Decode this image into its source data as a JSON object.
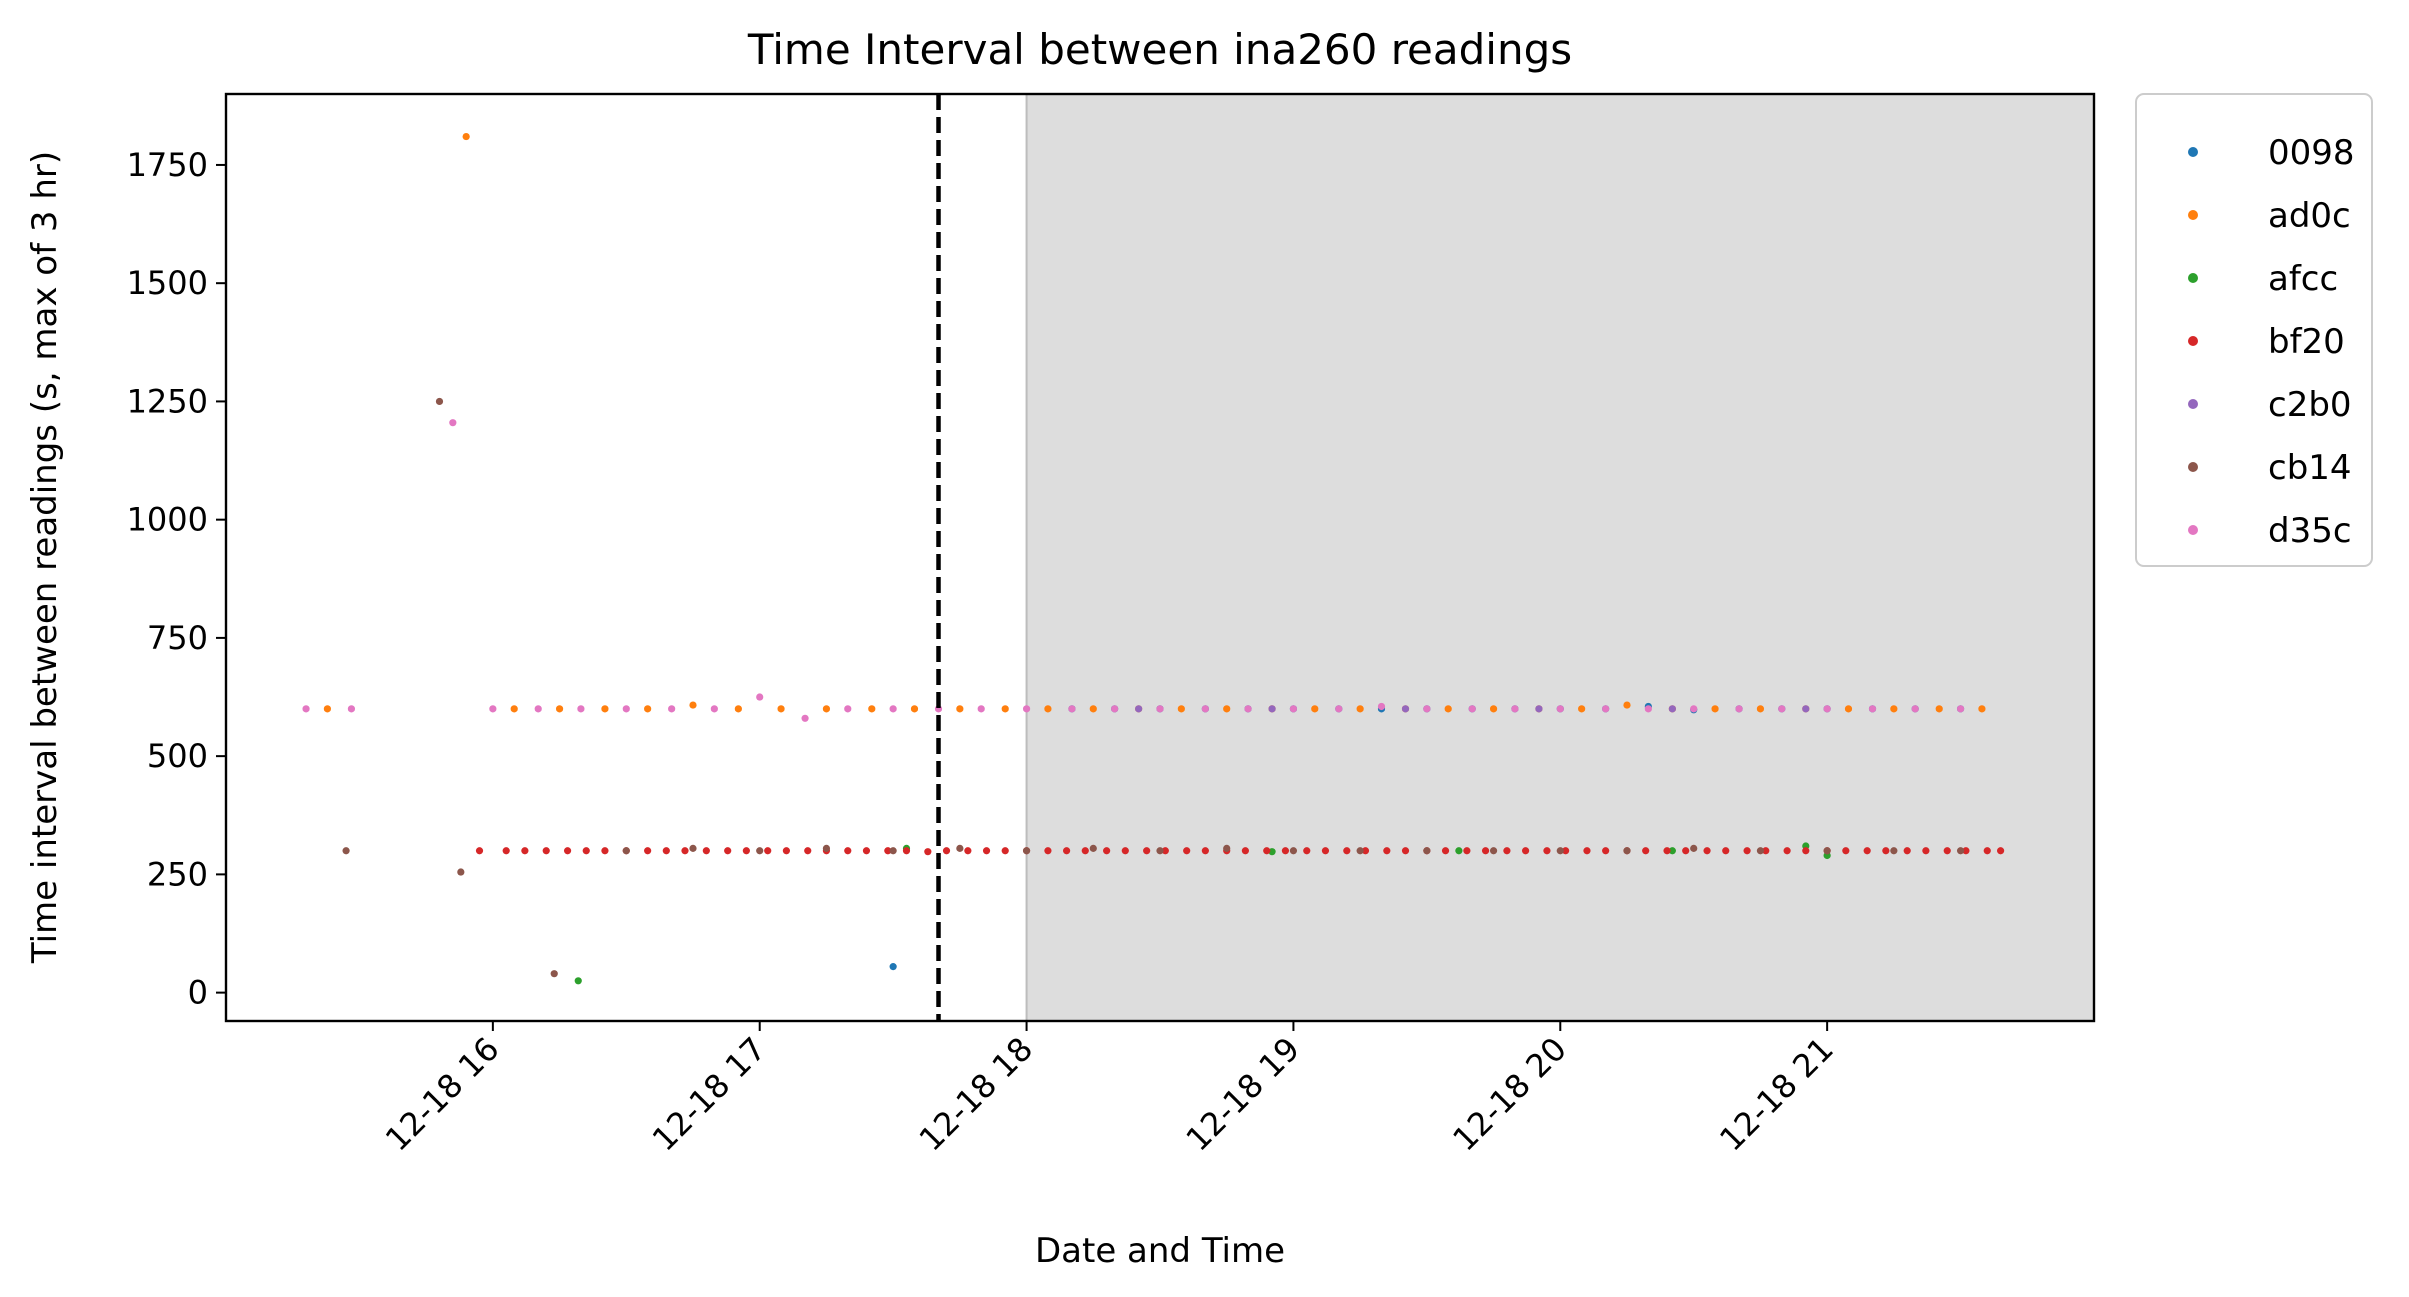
{
  "chart_data": {
    "type": "scatter",
    "title": "Time Interval between ina260 readings",
    "xlabel": "Date and Time",
    "ylabel": "Time interval between readings (s, max of 3 hr)",
    "x_unit": "hour of 12-18",
    "xlim": [
      15.0,
      22.0
    ],
    "ylim": [
      -60,
      1900
    ],
    "yticks": [
      0,
      250,
      500,
      750,
      1000,
      1250,
      1500,
      1750
    ],
    "xticks": [
      16,
      17,
      18,
      19,
      20,
      21
    ],
    "xtick_labels": [
      "12-18 16",
      "12-18 17",
      "12-18 18",
      "12-18 19",
      "12-18 20",
      "12-18 21"
    ],
    "shaded_region": {
      "x_start": 18.0,
      "x_end": 22.0,
      "color": "#dddddd"
    },
    "vline": {
      "x": 17.67,
      "style": "dashed",
      "color": "#000000"
    },
    "legend": {
      "placement": "outside-top-right"
    },
    "grid": false,
    "series": [
      {
        "name": "0098",
        "color": "#1f77b4",
        "points": [
          [
            17.5,
            55
          ],
          [
            18.17,
            600
          ],
          [
            18.33,
            600
          ],
          [
            18.5,
            600
          ],
          [
            18.67,
            600
          ],
          [
            18.83,
            600
          ],
          [
            19.0,
            600
          ],
          [
            19.17,
            600
          ],
          [
            19.33,
            600
          ],
          [
            19.5,
            600
          ],
          [
            19.67,
            600
          ],
          [
            19.83,
            600
          ],
          [
            20.0,
            600
          ],
          [
            20.17,
            600
          ],
          [
            20.33,
            605
          ],
          [
            20.5,
            598
          ],
          [
            20.67,
            600
          ],
          [
            20.83,
            600
          ],
          [
            21.0,
            600
          ],
          [
            21.17,
            600
          ],
          [
            21.33,
            600
          ],
          [
            21.5,
            600
          ]
        ]
      },
      {
        "name": "ad0c",
        "color": "#ff7f0e",
        "points": [
          [
            15.38,
            600
          ],
          [
            15.9,
            1810
          ],
          [
            16.08,
            600
          ],
          [
            16.25,
            600
          ],
          [
            16.42,
            600
          ],
          [
            16.58,
            600
          ],
          [
            16.75,
            608
          ],
          [
            16.92,
            600
          ],
          [
            17.08,
            600
          ],
          [
            17.25,
            600
          ],
          [
            17.42,
            600
          ],
          [
            17.58,
            600
          ],
          [
            17.75,
            600
          ],
          [
            17.92,
            600
          ],
          [
            18.08,
            600
          ],
          [
            18.25,
            600
          ],
          [
            18.42,
            600
          ],
          [
            18.58,
            600
          ],
          [
            18.75,
            600
          ],
          [
            18.92,
            600
          ],
          [
            19.08,
            600
          ],
          [
            19.25,
            600
          ],
          [
            19.42,
            600
          ],
          [
            19.58,
            600
          ],
          [
            19.75,
            600
          ],
          [
            19.92,
            600
          ],
          [
            20.08,
            600
          ],
          [
            20.25,
            608
          ],
          [
            20.42,
            600
          ],
          [
            20.58,
            600
          ],
          [
            20.75,
            600
          ],
          [
            20.92,
            600
          ],
          [
            21.08,
            600
          ],
          [
            21.25,
            600
          ],
          [
            21.42,
            600
          ],
          [
            21.58,
            600
          ]
        ]
      },
      {
        "name": "afcc",
        "color": "#2ca02c",
        "points": [
          [
            16.32,
            25
          ],
          [
            17.55,
            305
          ],
          [
            18.92,
            298
          ],
          [
            19.62,
            300
          ],
          [
            20.42,
            300
          ],
          [
            20.92,
            310
          ],
          [
            21.0,
            290
          ]
        ]
      },
      {
        "name": "bf20",
        "color": "#d62728",
        "points": [
          [
            15.95,
            300
          ],
          [
            16.05,
            300
          ],
          [
            16.12,
            300
          ],
          [
            16.2,
            300
          ],
          [
            16.28,
            300
          ],
          [
            16.35,
            300
          ],
          [
            16.42,
            300
          ],
          [
            16.5,
            300
          ],
          [
            16.58,
            300
          ],
          [
            16.65,
            300
          ],
          [
            16.72,
            300
          ],
          [
            16.8,
            300
          ],
          [
            16.88,
            300
          ],
          [
            16.95,
            300
          ],
          [
            17.03,
            300
          ],
          [
            17.1,
            300
          ],
          [
            17.18,
            300
          ],
          [
            17.25,
            300
          ],
          [
            17.33,
            300
          ],
          [
            17.4,
            300
          ],
          [
            17.48,
            300
          ],
          [
            17.55,
            300
          ],
          [
            17.63,
            298
          ],
          [
            17.7,
            300
          ],
          [
            17.78,
            300
          ],
          [
            17.85,
            300
          ],
          [
            17.92,
            300
          ],
          [
            18.0,
            300
          ],
          [
            18.08,
            300
          ],
          [
            18.15,
            300
          ],
          [
            18.22,
            300
          ],
          [
            18.3,
            300
          ],
          [
            18.37,
            300
          ],
          [
            18.45,
            300
          ],
          [
            18.52,
            300
          ],
          [
            18.6,
            300
          ],
          [
            18.67,
            300
          ],
          [
            18.75,
            300
          ],
          [
            18.82,
            300
          ],
          [
            18.9,
            300
          ],
          [
            18.97,
            300
          ],
          [
            19.05,
            300
          ],
          [
            19.12,
            300
          ],
          [
            19.2,
            300
          ],
          [
            19.27,
            300
          ],
          [
            19.35,
            300
          ],
          [
            19.42,
            300
          ],
          [
            19.5,
            300
          ],
          [
            19.57,
            300
          ],
          [
            19.65,
            300
          ],
          [
            19.72,
            300
          ],
          [
            19.8,
            300
          ],
          [
            19.87,
            300
          ],
          [
            19.95,
            300
          ],
          [
            20.02,
            300
          ],
          [
            20.1,
            300
          ],
          [
            20.17,
            300
          ],
          [
            20.25,
            300
          ],
          [
            20.32,
            300
          ],
          [
            20.4,
            300
          ],
          [
            20.47,
            300
          ],
          [
            20.55,
            300
          ],
          [
            20.62,
            300
          ],
          [
            20.7,
            300
          ],
          [
            20.77,
            300
          ],
          [
            20.85,
            300
          ],
          [
            20.92,
            300
          ],
          [
            21.0,
            300
          ],
          [
            21.07,
            300
          ],
          [
            21.15,
            300
          ],
          [
            21.22,
            300
          ],
          [
            21.3,
            300
          ],
          [
            21.37,
            300
          ],
          [
            21.45,
            300
          ],
          [
            21.52,
            300
          ],
          [
            21.6,
            300
          ],
          [
            21.65,
            300
          ]
        ]
      },
      {
        "name": "c2b0",
        "color": "#9467bd",
        "points": [
          [
            18.42,
            600
          ],
          [
            18.92,
            600
          ],
          [
            19.42,
            600
          ],
          [
            19.92,
            600
          ],
          [
            20.42,
            600
          ],
          [
            20.92,
            600
          ]
        ]
      },
      {
        "name": "cb14",
        "color": "#8c564b",
        "points": [
          [
            15.45,
            300
          ],
          [
            15.8,
            1250
          ],
          [
            15.88,
            255
          ],
          [
            16.23,
            40
          ],
          [
            16.5,
            300
          ],
          [
            16.75,
            305
          ],
          [
            17.0,
            300
          ],
          [
            17.25,
            305
          ],
          [
            17.5,
            300
          ],
          [
            17.75,
            305
          ],
          [
            18.0,
            300
          ],
          [
            18.25,
            305
          ],
          [
            18.5,
            300
          ],
          [
            18.75,
            305
          ],
          [
            19.0,
            300
          ],
          [
            19.25,
            300
          ],
          [
            19.5,
            300
          ],
          [
            19.75,
            300
          ],
          [
            20.0,
            300
          ],
          [
            20.25,
            300
          ],
          [
            20.5,
            305
          ],
          [
            20.75,
            300
          ],
          [
            21.0,
            300
          ],
          [
            21.25,
            300
          ],
          [
            21.5,
            300
          ]
        ]
      },
      {
        "name": "d35c",
        "color": "#e377c2",
        "points": [
          [
            15.3,
            600
          ],
          [
            15.47,
            600
          ],
          [
            15.85,
            1205
          ],
          [
            16.0,
            600
          ],
          [
            16.17,
            600
          ],
          [
            16.33,
            600
          ],
          [
            16.5,
            600
          ],
          [
            16.67,
            600
          ],
          [
            16.83,
            600
          ],
          [
            17.0,
            625
          ],
          [
            17.17,
            580
          ],
          [
            17.33,
            600
          ],
          [
            17.5,
            600
          ],
          [
            17.67,
            600
          ],
          [
            17.83,
            600
          ],
          [
            18.0,
            600
          ],
          [
            18.17,
            600
          ],
          [
            18.33,
            600
          ],
          [
            18.5,
            600
          ],
          [
            18.67,
            600
          ],
          [
            18.83,
            600
          ],
          [
            19.0,
            600
          ],
          [
            19.17,
            600
          ],
          [
            19.33,
            605
          ],
          [
            19.5,
            600
          ],
          [
            19.67,
            600
          ],
          [
            19.83,
            600
          ],
          [
            20.0,
            600
          ],
          [
            20.17,
            600
          ],
          [
            20.33,
            600
          ],
          [
            20.5,
            600
          ],
          [
            20.67,
            600
          ],
          [
            20.83,
            600
          ],
          [
            21.0,
            600
          ],
          [
            21.17,
            600
          ],
          [
            21.33,
            600
          ],
          [
            21.5,
            600
          ]
        ]
      }
    ]
  }
}
